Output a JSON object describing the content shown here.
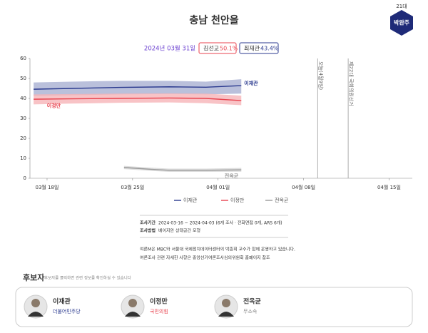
{
  "header": {
    "title": "충남 천안을",
    "badge_term": "21대",
    "badge_name": "박완주"
  },
  "summary": {
    "date": "2024년 03월 31일",
    "results": [
      {
        "name": "김선교",
        "value": "50.1%"
      },
      {
        "name": "최재관",
        "value": "43.4%"
      }
    ]
  },
  "chart_data": {
    "type": "line",
    "xlim": [
      16.6,
      47.9
    ],
    "xticks": [
      {
        "value": 18,
        "label": "03월 18일"
      },
      {
        "value": 25,
        "label": "03월 25일"
      },
      {
        "value": 32,
        "label": "04월 01일"
      },
      {
        "value": 39,
        "label": "04월 08일"
      },
      {
        "value": 46,
        "label": "04월 15일"
      }
    ],
    "ylim": [
      0,
      60
    ],
    "yticks": [
      0,
      10,
      20,
      30,
      40,
      50,
      60
    ],
    "grid": false,
    "series": [
      {
        "name": "이재관",
        "color": "#2b3a8f",
        "band_color": "#a9b0d2",
        "x": [
          16.9,
          20,
          24,
          28,
          31,
          33.9
        ],
        "values": [
          44.6,
          45,
          45.5,
          45.8,
          45.6,
          46.4
        ],
        "lower": [
          41.2,
          41.6,
          42,
          42.2,
          42,
          42.4
        ],
        "upper": [
          48,
          48.4,
          48.8,
          48.8,
          48.4,
          49.6
        ]
      },
      {
        "name": "이정만",
        "color": "#e8434f",
        "band_color": "#f6b4b8",
        "x": [
          16.9,
          20,
          24,
          28,
          31,
          33.9
        ],
        "values": [
          39.6,
          39.8,
          40,
          40.2,
          40,
          38.9
        ],
        "lower": [
          37,
          37.4,
          37.8,
          38,
          37.6,
          36.6
        ],
        "upper": [
          42,
          42.2,
          42.4,
          42.5,
          42.4,
          41.4
        ]
      },
      {
        "name": "전옥균",
        "color": "#9a9a9a",
        "band_color": "#d4d4d4",
        "x": [
          24.3,
          26.5,
          28,
          31,
          33.9
        ],
        "values": [
          5.4,
          4.5,
          4,
          4,
          4.2
        ],
        "lower": [
          4.6,
          3.7,
          3.2,
          3.2,
          3.3
        ],
        "upper": [
          6.2,
          5.3,
          4.8,
          4.8,
          5.2
        ]
      }
    ],
    "markers": [
      {
        "x": 40.15,
        "label": "오늘(4월9일)"
      },
      {
        "x": 42.65,
        "label": "제22대 국회의원선거"
      }
    ]
  },
  "info": {
    "period_label": "조사기간",
    "period": "2024-03-16 ~ 2024-04-03 (6개 조사 · 전화면접 0개, ARS 6개)",
    "method_label": "조사방법",
    "method": "베이지안 상태공간 모형",
    "notes": [
      "여론M은 MBC와 서울대 국제정치데이터센터의 박종희 교수가 함께 운영하고 있습니다.",
      "여론조사 관련 자세한 사항은 중앙선거여론조사심의위원회 홈페이지 참조"
    ]
  },
  "candidates": {
    "title": "후보자",
    "hint": "후보자를 클릭하면 관련 정보를 확인하실 수 있습니다",
    "list": [
      {
        "name": "이재관",
        "party": "더불어민주당",
        "color": "#2b3a8f"
      },
      {
        "name": "이정만",
        "party": "국민의힘",
        "color": "#e8434f"
      },
      {
        "name": "전옥균",
        "party": "무소속",
        "color": "#888888"
      }
    ]
  }
}
